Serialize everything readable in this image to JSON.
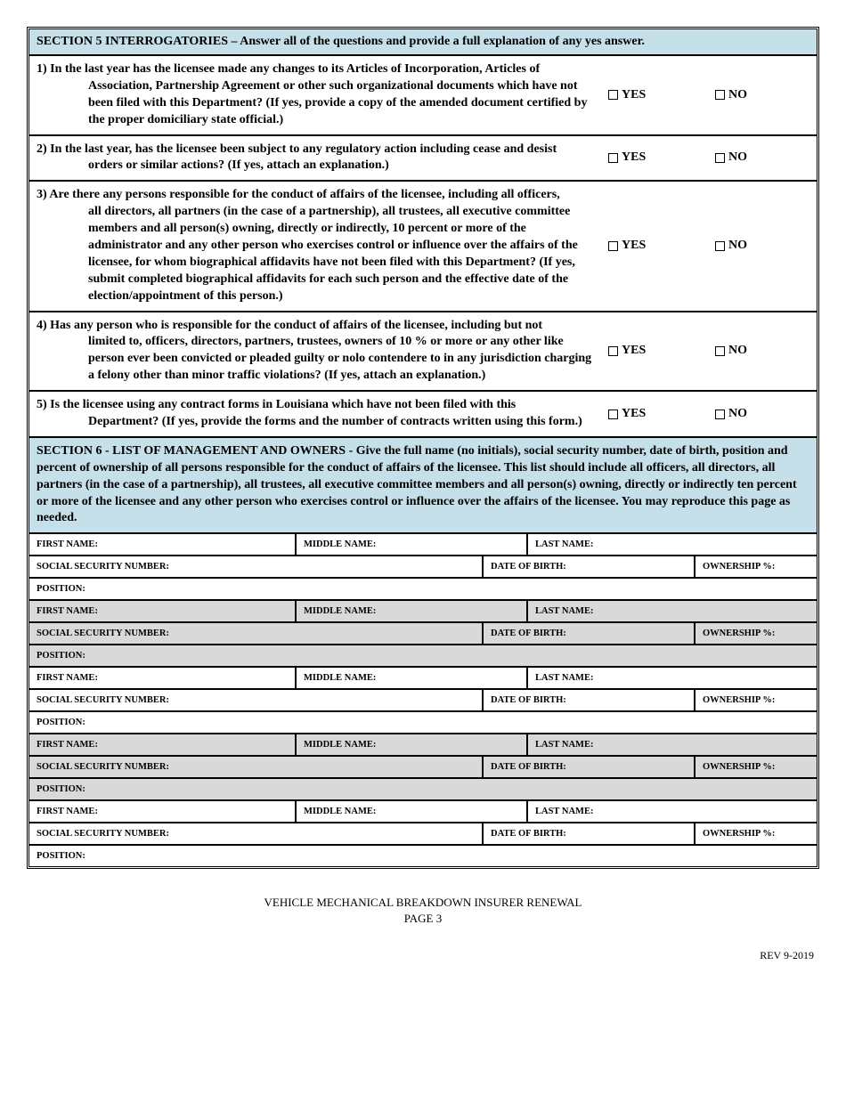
{
  "section5": {
    "title": "SECTION 5  INTERROGATORIES – Answer all of the questions and provide a full explanation of any yes answer.",
    "yes": "YES",
    "no": "NO",
    "questions": [
      {
        "num": "1)",
        "first": "In the last year has the licensee made any changes to its Articles of Incorporation, Articles of",
        "rest": "Association, Partnership Agreement or other such organizational documents which have not been filed with this Department?  (If yes, provide a copy of the amended document certified by the proper domiciliary state official.)"
      },
      {
        "num": "2)",
        "first": "In the last year, has the licensee been subject to any regulatory action including cease and desist",
        "rest": "orders or similar actions? (If yes, attach an explanation.)"
      },
      {
        "num": "3)",
        "first": "Are there any persons responsible for the conduct of affairs of the licensee, including all officers,",
        "rest": "all directors, all partners (in the case of a partnership), all trustees, all executive committee members and all person(s) owning, directly or indirectly, 10 percent or more of the administrator and any other person who exercises control or influence over the affairs of the licensee, for whom biographical affidavits have not been filed with this Department?  (If yes, submit completed biographical affidavits for each such person and the effective date of the election/appointment of this person.)"
      },
      {
        "num": "4)",
        "first": "Has any person who is responsible for the conduct of affairs of the licensee, including but not",
        "rest": "limited to, officers, directors, partners, trustees, owners of 10 % or more or any other like person ever been convicted or pleaded guilty or nolo contendere to in any jurisdiction charging a felony  other than minor traffic violations? (If yes, attach an explanation.)"
      },
      {
        "num": "5)",
        "first": "Is the licensee using any contract forms in Louisiana which have not been filed with this",
        "rest": "Department? (If yes, provide the forms and the number of contracts written using this form.)"
      }
    ]
  },
  "section6": {
    "title": "SECTION 6 - LIST OF MANAGEMENT AND OWNERS - Give the full name (no initials), social security number, date of birth, position and percent of ownership of all persons responsible for the conduct of affairs of the licensee.  This list should include all officers,  all directors,  all partners (in the case of a partnership), all trustees,  all executive committee members and all person(s) owning, directly or indirectly ten percent or more of the licensee and any other person who exercises control or influence over the affairs of the licensee.  You may reproduce this page as needed.",
    "labels": {
      "first": "FIRST NAME:",
      "middle": "MIDDLE NAME:",
      "last": "LAST NAME:",
      "ssn": "SOCIAL SECURITY NUMBER:",
      "dob": "DATE OF BIRTH:",
      "own": "OWNERSHIP %:",
      "pos": "POSITION:"
    },
    "shaded": [
      false,
      true,
      false,
      true,
      false
    ]
  },
  "footer": {
    "line1": "VEHICLE MECHANICAL BREAKDOWN INSURER RENEWAL",
    "line2": "PAGE 3",
    "rev": "REV 9-2019"
  }
}
